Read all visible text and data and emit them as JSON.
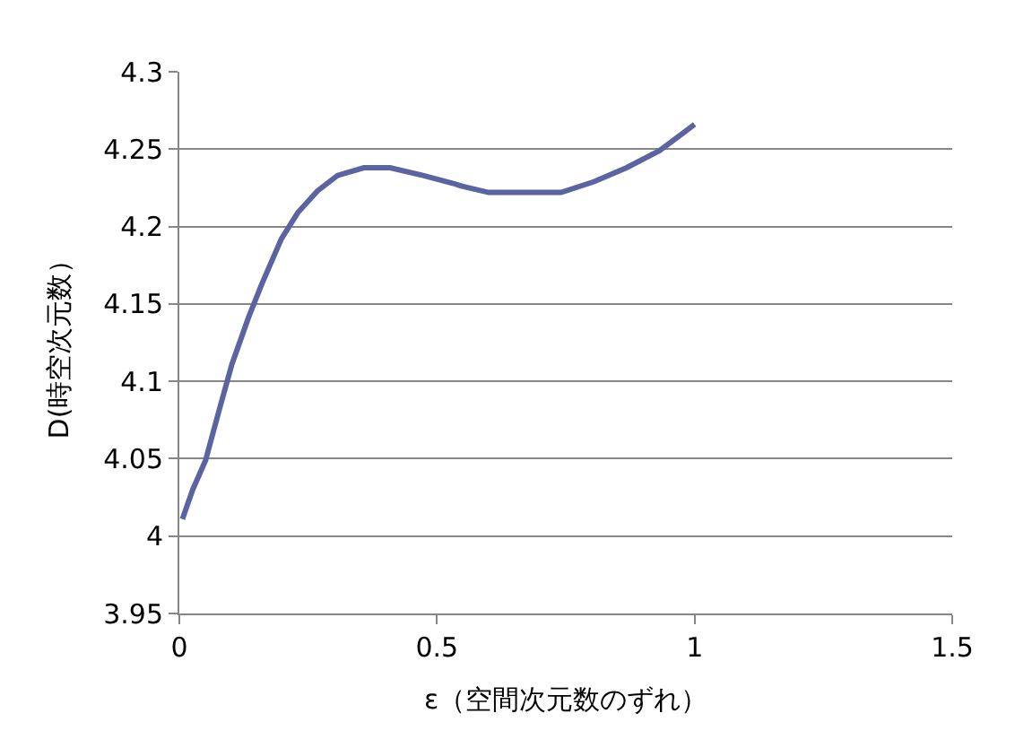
{
  "chart_data": {
    "type": "line",
    "xlabel": "ε（空間次元数のずれ）",
    "ylabel": "D(時空次元数）",
    "x": [
      0.006,
      0.026,
      0.051,
      0.077,
      0.102,
      0.134,
      0.159,
      0.198,
      0.23,
      0.268,
      0.307,
      0.358,
      0.409,
      0.473,
      0.53,
      0.549,
      0.6,
      0.741,
      0.805,
      0.868,
      0.932,
      1.0
    ],
    "series": [
      {
        "color": "#5b64a0",
        "values": [
          4.011,
          4.03,
          4.049,
          4.081,
          4.111,
          4.141,
          4.162,
          4.192,
          4.209,
          4.223,
          4.233,
          4.238,
          4.238,
          4.233,
          4.228,
          4.226,
          4.222,
          4.222,
          4.229,
          4.238,
          4.249,
          4.266
        ]
      }
    ],
    "xlim": [
      0,
      1.5
    ],
    "xticks": [
      0,
      0.5,
      1,
      1.5
    ],
    "ylim": [
      3.95,
      4.3
    ],
    "yticks": [
      3.95,
      4,
      4.05,
      4.1,
      4.15,
      4.2,
      4.25,
      4.3
    ],
    "grid": "y",
    "marker": "none",
    "line_style": "solid"
  }
}
